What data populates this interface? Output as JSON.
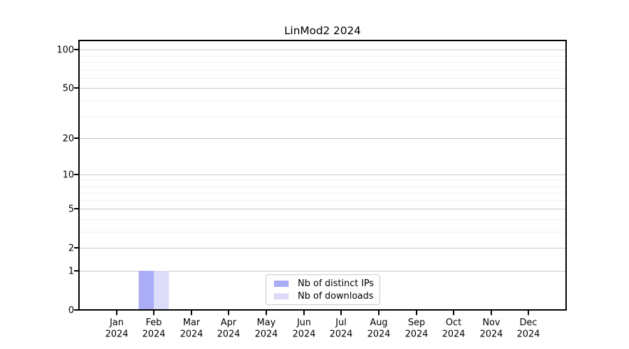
{
  "chart_data": {
    "type": "bar",
    "title": "LinMod2 2024",
    "categories": [
      "Jan 2024",
      "Feb 2024",
      "Mar 2024",
      "Apr 2024",
      "May 2024",
      "Jun 2024",
      "Jul 2024",
      "Aug 2024",
      "Sep 2024",
      "Oct 2024",
      "Nov 2024",
      "Dec 2024"
    ],
    "series": [
      {
        "name": "Nb of distinct IPs",
        "color": "#aaacf5",
        "values": [
          0,
          1,
          0,
          0,
          0,
          0,
          0,
          0,
          0,
          0,
          0,
          0
        ]
      },
      {
        "name": "Nb of downloads",
        "color": "#dcdcf9",
        "values": [
          0,
          1,
          0,
          0,
          0,
          0,
          0,
          0,
          0,
          0,
          0,
          0
        ]
      }
    ],
    "xlabel": "",
    "ylabel": "",
    "yscale": "log1p",
    "ylim": [
      0,
      118
    ],
    "yticks": [
      0,
      1,
      2,
      5,
      10,
      20,
      50,
      100
    ],
    "y_minor_gridlines": [
      3,
      4,
      6,
      7,
      8,
      9,
      30,
      40,
      60,
      70,
      80,
      90
    ],
    "grid": true,
    "legend_position": "lower center",
    "colors": {
      "background": "#ffffff",
      "axis": "#000000",
      "major_grid": "#c8c8c8",
      "minor_grid": "#f0f0f0",
      "legend_border": "#c9c9c9"
    }
  }
}
